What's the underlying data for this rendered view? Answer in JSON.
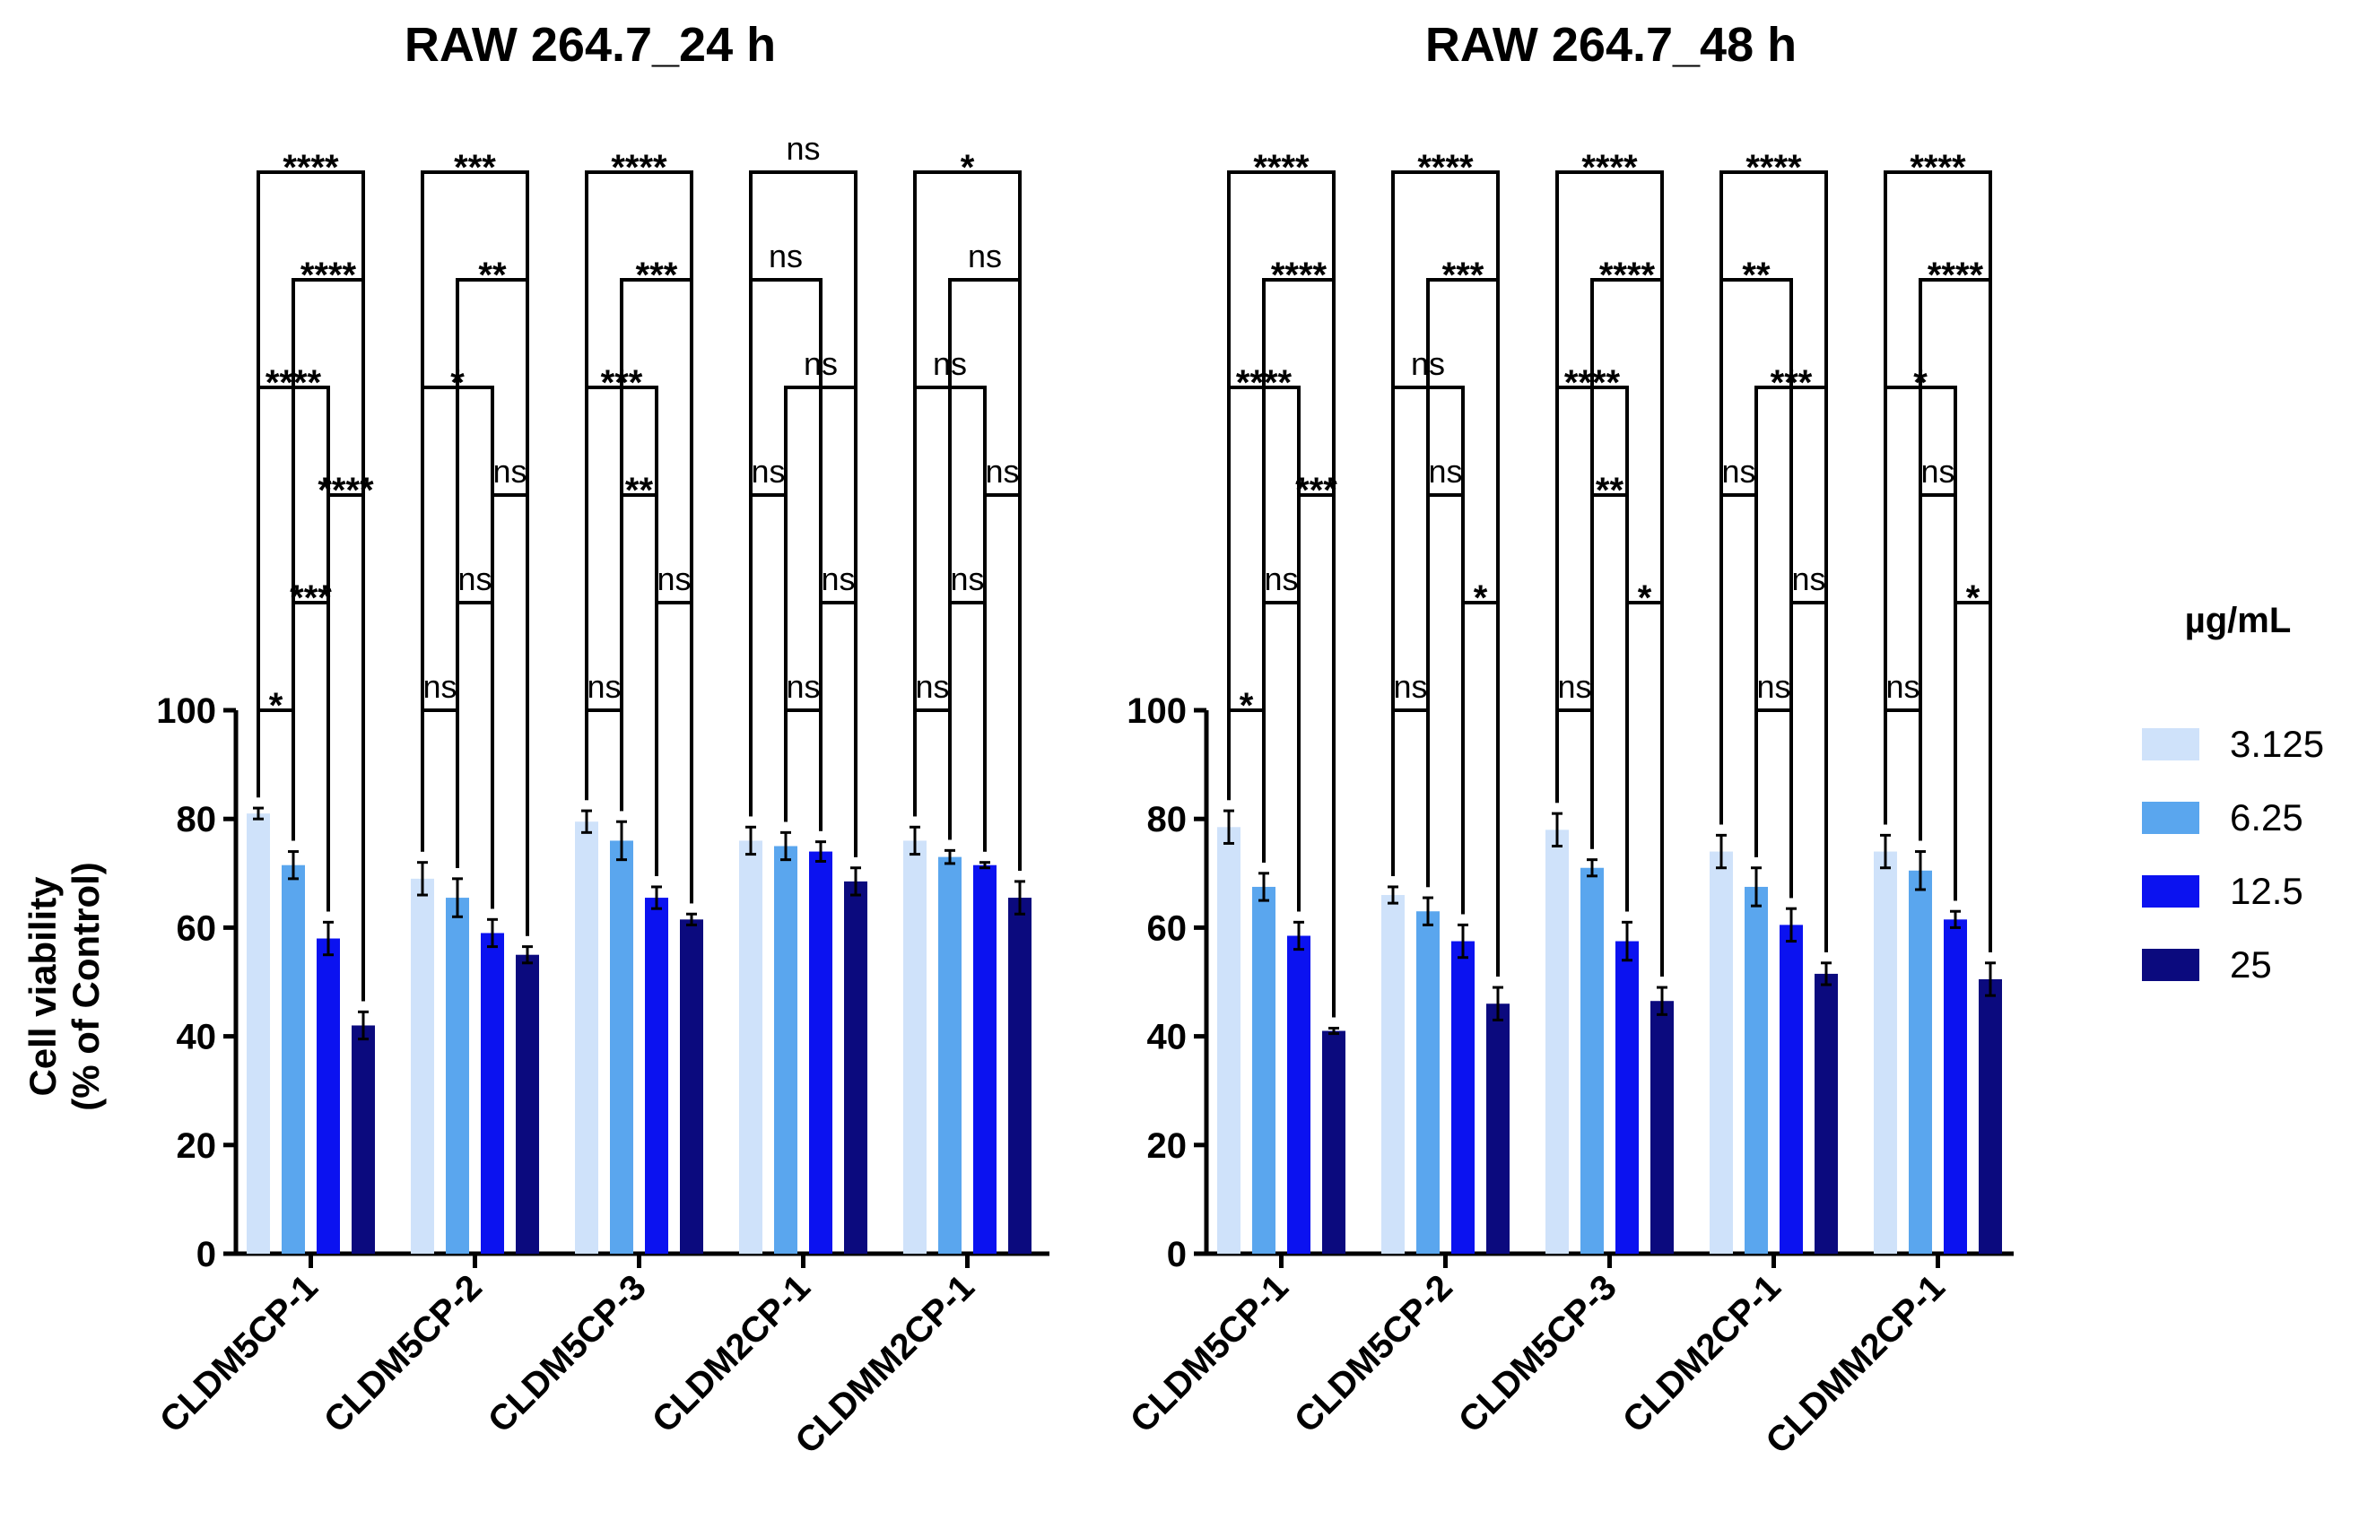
{
  "legend": {
    "title": "µg/mL",
    "items": [
      {
        "label": "3.125",
        "color": "#cfe2fa"
      },
      {
        "label": "6.25",
        "color": "#5aa6ee"
      },
      {
        "label": "12.5",
        "color": "#0b12f0"
      },
      {
        "label": "25",
        "color": "#0b0a7e"
      }
    ]
  },
  "chart_data": [
    {
      "type": "bar",
      "title": "RAW 264.7_24 h",
      "ylabel": "Cell viability\n(% of Control)",
      "xlabel": "",
      "ylim": [
        0,
        100
      ],
      "yticks": [
        0,
        20,
        40,
        60,
        80,
        100
      ],
      "categories": [
        "CLDM5CP-1",
        "CLDM5CP-2",
        "CLDM5CP-3",
        "CLDM2CP-1",
        "CLDMM2CP-1"
      ],
      "series": [
        {
          "name": "3.125",
          "values": [
            81,
            69,
            79.5,
            76,
            76
          ],
          "errors": [
            1,
            3,
            2,
            2.5,
            2.5
          ]
        },
        {
          "name": "6.25",
          "values": [
            71.5,
            65.5,
            76,
            75,
            73
          ],
          "errors": [
            2.5,
            3.5,
            3.5,
            2.5,
            1.2
          ]
        },
        {
          "name": "12.5",
          "values": [
            58,
            59,
            65.5,
            74,
            71.5
          ],
          "errors": [
            3,
            2.5,
            2,
            1.8,
            0.5
          ]
        },
        {
          "name": "25",
          "values": [
            42,
            55,
            61.5,
            68.5,
            65.5
          ],
          "errors": [
            2.5,
            1.5,
            1,
            2.5,
            3
          ]
        }
      ],
      "comparisons": [
        [
          {
            "a": 0,
            "b": 1,
            "label": "*"
          },
          {
            "a": 1,
            "b": 2,
            "label": "***"
          },
          {
            "a": 2,
            "b": 3,
            "label": "****"
          },
          {
            "a": 0,
            "b": 2,
            "label": "****"
          },
          {
            "a": 1,
            "b": 3,
            "label": "****"
          },
          {
            "a": 0,
            "b": 3,
            "label": "****"
          }
        ],
        [
          {
            "a": 0,
            "b": 1,
            "label": "ns"
          },
          {
            "a": 1,
            "b": 2,
            "label": "ns"
          },
          {
            "a": 2,
            "b": 3,
            "label": "ns"
          },
          {
            "a": 0,
            "b": 2,
            "label": "*"
          },
          {
            "a": 1,
            "b": 3,
            "label": "**"
          },
          {
            "a": 0,
            "b": 3,
            "label": "***"
          }
        ],
        [
          {
            "a": 0,
            "b": 1,
            "label": "ns"
          },
          {
            "a": 2,
            "b": 3,
            "label": "ns"
          },
          {
            "a": 1,
            "b": 2,
            "label": "**"
          },
          {
            "a": 0,
            "b": 2,
            "label": "***"
          },
          {
            "a": 1,
            "b": 3,
            "label": "***"
          },
          {
            "a": 0,
            "b": 3,
            "label": "****"
          }
        ],
        [
          {
            "a": 1,
            "b": 2,
            "label": "ns"
          },
          {
            "a": 2,
            "b": 3,
            "label": "ns"
          },
          {
            "a": 0,
            "b": 1,
            "label": "ns"
          },
          {
            "a": 1,
            "b": 3,
            "label": "ns"
          },
          {
            "a": 0,
            "b": 2,
            "label": "ns"
          },
          {
            "a": 0,
            "b": 3,
            "label": "ns"
          }
        ],
        [
          {
            "a": 0,
            "b": 1,
            "label": "ns"
          },
          {
            "a": 1,
            "b": 2,
            "label": "ns"
          },
          {
            "a": 2,
            "b": 3,
            "label": "ns"
          },
          {
            "a": 0,
            "b": 2,
            "label": "ns"
          },
          {
            "a": 1,
            "b": 3,
            "label": "ns"
          },
          {
            "a": 0,
            "b": 3,
            "label": "*"
          }
        ]
      ]
    },
    {
      "type": "bar",
      "title": "RAW 264.7_48 h",
      "ylabel": "",
      "xlabel": "",
      "ylim": [
        0,
        100
      ],
      "yticks": [
        0,
        20,
        40,
        60,
        80,
        100
      ],
      "categories": [
        "CLDM5CP-1",
        "CLDM5CP-2",
        "CLDM5CP-3",
        "CLDM2CP-1",
        "CLDMM2CP-1"
      ],
      "series": [
        {
          "name": "3.125",
          "values": [
            78.5,
            66,
            78,
            74,
            74
          ],
          "errors": [
            3,
            1.5,
            3,
            3,
            3
          ]
        },
        {
          "name": "6.25",
          "values": [
            67.5,
            63,
            71,
            67.5,
            70.5
          ],
          "errors": [
            2.5,
            2.5,
            1.5,
            3.5,
            3.5
          ]
        },
        {
          "name": "12.5",
          "values": [
            58.5,
            57.5,
            57.5,
            60.5,
            61.5
          ],
          "errors": [
            2.5,
            3,
            3.5,
            3,
            1.5
          ]
        },
        {
          "name": "25",
          "values": [
            41,
            46,
            46.5,
            51.5,
            50.5
          ],
          "errors": [
            0.5,
            3,
            2.5,
            2,
            3
          ]
        }
      ],
      "comparisons": [
        [
          {
            "a": 0,
            "b": 1,
            "label": "*"
          },
          {
            "a": 1,
            "b": 2,
            "label": "ns"
          },
          {
            "a": 2,
            "b": 3,
            "label": "***"
          },
          {
            "a": 0,
            "b": 2,
            "label": "****"
          },
          {
            "a": 1,
            "b": 3,
            "label": "****"
          },
          {
            "a": 0,
            "b": 3,
            "label": "****"
          }
        ],
        [
          {
            "a": 0,
            "b": 1,
            "label": "ns"
          },
          {
            "a": 2,
            "b": 3,
            "label": "*"
          },
          {
            "a": 1,
            "b": 2,
            "label": "ns"
          },
          {
            "a": 0,
            "b": 2,
            "label": "ns"
          },
          {
            "a": 1,
            "b": 3,
            "label": "***"
          },
          {
            "a": 0,
            "b": 3,
            "label": "****"
          }
        ],
        [
          {
            "a": 0,
            "b": 1,
            "label": "ns"
          },
          {
            "a": 2,
            "b": 3,
            "label": "*"
          },
          {
            "a": 1,
            "b": 2,
            "label": "**"
          },
          {
            "a": 0,
            "b": 2,
            "label": "****"
          },
          {
            "a": 1,
            "b": 3,
            "label": "****"
          },
          {
            "a": 0,
            "b": 3,
            "label": "****"
          }
        ],
        [
          {
            "a": 1,
            "b": 2,
            "label": "ns"
          },
          {
            "a": 2,
            "b": 3,
            "label": "ns"
          },
          {
            "a": 0,
            "b": 1,
            "label": "ns"
          },
          {
            "a": 1,
            "b": 3,
            "label": "***"
          },
          {
            "a": 0,
            "b": 2,
            "label": "**"
          },
          {
            "a": 0,
            "b": 3,
            "label": "****"
          }
        ],
        [
          {
            "a": 0,
            "b": 1,
            "label": "ns"
          },
          {
            "a": 2,
            "b": 3,
            "label": "*"
          },
          {
            "a": 1,
            "b": 2,
            "label": "ns"
          },
          {
            "a": 0,
            "b": 2,
            "label": "*"
          },
          {
            "a": 1,
            "b": 3,
            "label": "****"
          },
          {
            "a": 0,
            "b": 3,
            "label": "****"
          }
        ]
      ]
    }
  ]
}
